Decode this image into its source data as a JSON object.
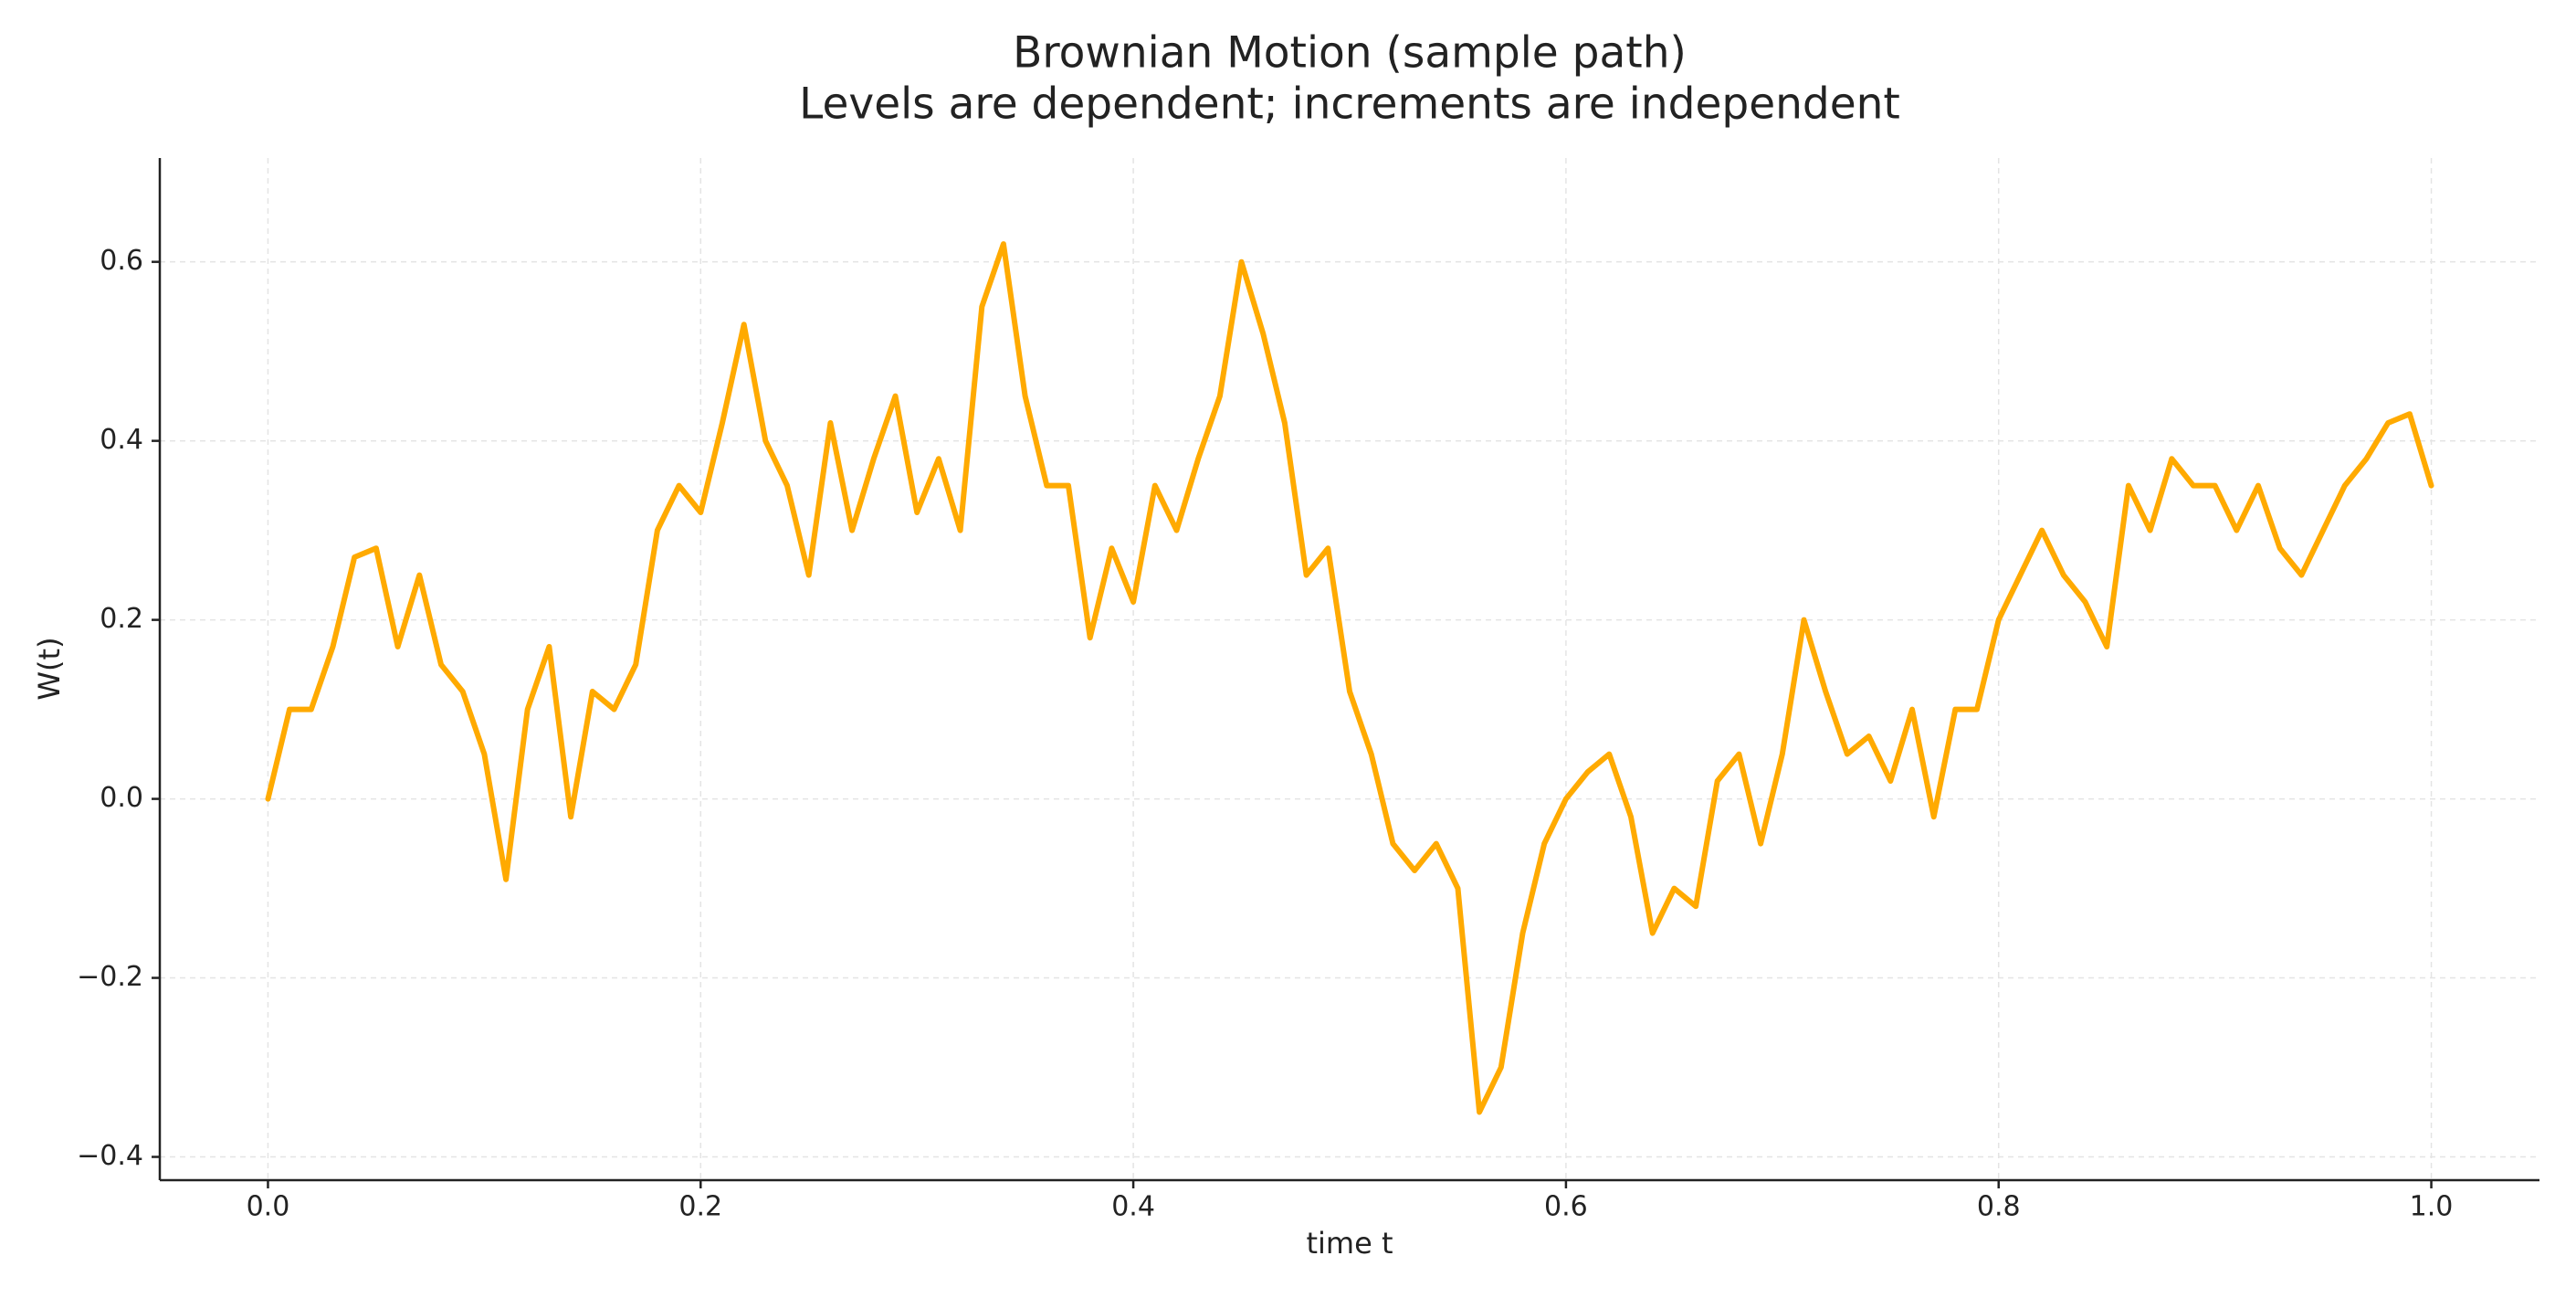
{
  "chart_data": {
    "type": "line",
    "title": "Brownian Motion (sample path)",
    "subtitle": "Levels are dependent; increments are independent",
    "x_label": "time t",
    "y_label": "W(t)",
    "x": [
      0,
      0.01,
      0.02,
      0.03,
      0.04,
      0.05,
      0.06,
      0.07,
      0.08,
      0.09,
      0.1,
      0.11,
      0.12,
      0.13,
      0.14,
      0.15,
      0.16,
      0.17,
      0.18,
      0.19,
      0.2,
      0.21,
      0.22,
      0.23,
      0.24,
      0.25,
      0.26,
      0.27,
      0.28,
      0.29,
      0.3,
      0.31,
      0.32,
      0.33,
      0.34,
      0.35,
      0.36,
      0.37,
      0.38,
      0.39,
      0.4,
      0.41,
      0.42,
      0.43,
      0.44,
      0.45,
      0.46,
      0.47,
      0.48,
      0.49,
      0.5,
      0.51,
      0.52,
      0.53,
      0.54,
      0.55,
      0.56,
      0.57,
      0.58,
      0.59,
      0.6,
      0.61,
      0.62,
      0.63,
      0.64,
      0.65,
      0.66,
      0.67,
      0.68,
      0.69,
      0.7,
      0.71,
      0.72,
      0.73,
      0.74,
      0.75,
      0.76,
      0.77,
      0.78,
      0.79,
      0.8,
      0.81,
      0.82,
      0.83,
      0.84,
      0.85,
      0.86,
      0.87,
      0.88,
      0.89,
      0.9,
      0.91,
      0.92,
      0.93,
      0.94,
      0.95,
      0.96,
      0.97,
      0.98,
      0.99,
      1.0
    ],
    "values": [
      0,
      0.1,
      0.1,
      0.17,
      0.27,
      0.28,
      0.17,
      0.25,
      0.15,
      0.12,
      0.05,
      -0.09,
      0.1,
      0.17,
      -0.02,
      0.12,
      0.1,
      0.15,
      0.3,
      0.35,
      0.32,
      0.42,
      0.53,
      0.4,
      0.35,
      0.25,
      0.42,
      0.3,
      0.38,
      0.45,
      0.32,
      0.38,
      0.3,
      0.55,
      0.62,
      0.45,
      0.35,
      0.35,
      0.18,
      0.28,
      0.22,
      0.35,
      0.3,
      0.38,
      0.45,
      0.6,
      0.52,
      0.42,
      0.25,
      0.28,
      0.12,
      0.05,
      -0.05,
      -0.08,
      -0.05,
      -0.1,
      -0.35,
      -0.3,
      -0.15,
      -0.05,
      0,
      0.03,
      0.05,
      -0.02,
      -0.15,
      -0.1,
      -0.12,
      0.02,
      0.05,
      -0.05,
      0.05,
      0.2,
      0.12,
      0.05,
      0.07,
      0.02,
      0.1,
      -0.02,
      0.1,
      0.1,
      0.2,
      0.25,
      0.3,
      0.25,
      0.22,
      0.17,
      0.35,
      0.3,
      0.38,
      0.35,
      0.35,
      0.3,
      0.35,
      0.28,
      0.25,
      0.3,
      0.35,
      0.38,
      0.42,
      0.43,
      0.35
    ],
    "color": "#ffaa00",
    "xlim": [
      -0.05,
      1.05
    ],
    "ylim": [
      -0.426,
      0.716
    ],
    "xticks": [
      {
        "value": 0,
        "label": "0.0"
      },
      0.2,
      0.4,
      0.6,
      0.8,
      {
        "value": 1,
        "label": "1.0"
      }
    ],
    "yticks": [
      {
        "value": -0.4,
        "label": "−0.4"
      },
      {
        "value": -0.2,
        "label": "−0.2"
      },
      {
        "value": 0,
        "label": "0.0"
      },
      0.2,
      0.4,
      0.6
    ],
    "grid": true
  }
}
